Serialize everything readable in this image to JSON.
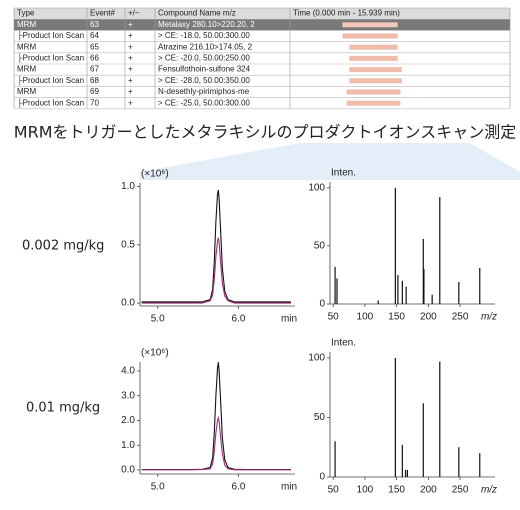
{
  "table": {
    "header": [
      "Type",
      "Event#",
      "+/−",
      "Compound Name m/z",
      "Time (0.000 min - 15.939 min)"
    ],
    "time_lim": [
      0,
      15.939
    ],
    "rows": [
      {
        "cells": [
          "MRM",
          "63",
          "+",
          "Metalaxy 280.10>220.20, 2"
        ],
        "time_window": [
          3.8,
          7.8
        ]
      },
      {
        "cells": [
          "├Product Ion Scan",
          "64",
          "+",
          "> CE: -18.0, 50.00:300.00"
        ],
        "time_window": [
          3.8,
          7.8
        ]
      },
      {
        "cells": [
          "MRM",
          "65",
          "+",
          "Atrazine 216.10>174.05, 2"
        ],
        "time_window": [
          4.3,
          7.8
        ]
      },
      {
        "cells": [
          "├Product Ion Scan",
          "66",
          "+",
          "> CE: -20.0, 50.00:250.00"
        ],
        "time_window": [
          4.3,
          7.8
        ]
      },
      {
        "cells": [
          "MRM",
          "67",
          "+",
          "Fensulfothoin-sulfone 324"
        ],
        "time_window": [
          4.3,
          8.1
        ]
      },
      {
        "cells": [
          "├Product Ion Scan",
          "68",
          "+",
          "> CE: -28.0, 50.00:350.00"
        ],
        "time_window": [
          4.3,
          8.1
        ]
      },
      {
        "cells": [
          "MRM",
          "69",
          "+",
          "N-desethly-pirimiphos-me"
        ],
        "time_window": [
          4.1,
          8.0
        ]
      },
      {
        "cells": [
          "├Product Ion Scan",
          "70",
          "+",
          "> CE: -25.0, 50.00:300.00"
        ],
        "time_window": [
          4.1,
          8.0
        ]
      }
    ]
  },
  "caption": "MRMをトリガーとしたメタラキシルのプロダクトイオンスキャン測定",
  "row_labels": [
    "0.002 mg/kg",
    "0.01 mg/kg"
  ],
  "chart_data": [
    {
      "type": "line",
      "y_unit_label": "(×10⁶)",
      "x_label": "min",
      "x": [
        4.8,
        5.0,
        5.2,
        5.4,
        5.55,
        5.65,
        5.68,
        5.7,
        5.72,
        5.74,
        5.75,
        5.76,
        5.78,
        5.8,
        5.83,
        5.87,
        5.95,
        6.1,
        6.3,
        6.5,
        6.65
      ],
      "series": [
        {
          "color": "#111111",
          "values": [
            0.01,
            0.01,
            0.01,
            0.01,
            0.01,
            0.03,
            0.12,
            0.35,
            0.7,
            0.93,
            0.97,
            0.9,
            0.6,
            0.3,
            0.1,
            0.03,
            0.01,
            0.01,
            0.01,
            0.01,
            0.01
          ]
        },
        {
          "color": "#a0307a",
          "values": [
            0.0,
            0.0,
            0.0,
            0.0,
            0.0,
            0.02,
            0.07,
            0.2,
            0.4,
            0.53,
            0.56,
            0.52,
            0.34,
            0.17,
            0.06,
            0.02,
            0.0,
            0.0,
            0.0,
            0.0,
            0.0
          ]
        }
      ],
      "xlim": [
        4.78,
        6.7
      ],
      "ylim": [
        -0.025,
        1.03
      ],
      "xticks": [
        {
          "value": 5,
          "label": "5.0"
        },
        {
          "value": 6,
          "label": "6.0"
        }
      ],
      "yticks": [
        {
          "value": 0,
          "label": "0.0"
        },
        {
          "value": 0.5,
          "label": "0.5"
        },
        {
          "value": 1,
          "label": "1.0"
        }
      ]
    },
    {
      "type": "stem",
      "y_unit_label": "Inten.",
      "x_label": "m/z",
      "color": "#111111",
      "x": [
        53,
        56,
        121,
        148,
        152,
        159,
        165,
        192,
        193,
        206,
        218,
        248,
        281
      ],
      "values": [
        32,
        22,
        3,
        100,
        25,
        20,
        15,
        56,
        30,
        8,
        92,
        19,
        31
      ],
      "xlim": [
        45,
        305
      ],
      "ylim": [
        0,
        105
      ],
      "xticks": [
        50,
        100,
        150,
        200,
        250
      ],
      "yticks": [
        0,
        50,
        100
      ]
    },
    {
      "type": "line",
      "y_unit_label": "(×10⁶)",
      "x_label": "min",
      "x": [
        4.8,
        5.0,
        5.2,
        5.4,
        5.55,
        5.65,
        5.68,
        5.7,
        5.72,
        5.74,
        5.75,
        5.76,
        5.78,
        5.8,
        5.83,
        5.87,
        5.95,
        6.1,
        6.3,
        6.5,
        6.65
      ],
      "series": [
        {
          "color": "#111111",
          "values": [
            0.02,
            0.02,
            0.02,
            0.02,
            0.03,
            0.1,
            0.5,
            1.5,
            3.0,
            4.1,
            4.35,
            4.0,
            2.7,
            1.3,
            0.4,
            0.1,
            0.03,
            0.02,
            0.02,
            0.02,
            0.02
          ]
        },
        {
          "color": "#a0307a",
          "values": [
            0.01,
            0.01,
            0.01,
            0.01,
            0.02,
            0.05,
            0.25,
            0.75,
            1.5,
            2.0,
            2.1,
            1.95,
            1.3,
            0.65,
            0.2,
            0.05,
            0.01,
            0.01,
            0.01,
            0.01,
            0.01
          ]
        }
      ],
      "xlim": [
        4.78,
        6.7
      ],
      "ylim": [
        -0.16,
        4.36
      ],
      "xticks": [
        {
          "value": 5,
          "label": "5.0"
        },
        {
          "value": 6,
          "label": "6.0"
        }
      ],
      "yticks": [
        {
          "value": 0,
          "label": "0.0"
        },
        {
          "value": 1,
          "label": "1.0"
        },
        {
          "value": 2,
          "label": "2.0"
        },
        {
          "value": 3,
          "label": "3.0"
        },
        {
          "value": 4,
          "label": "4.0"
        }
      ]
    },
    {
      "type": "stem",
      "y_unit_label": "Inten.",
      "x_label": "m/z",
      "color": "#111111",
      "x": [
        53,
        148,
        159,
        164,
        167,
        192,
        218,
        248,
        281
      ],
      "values": [
        30,
        100,
        27,
        6,
        6,
        62,
        97,
        25,
        20
      ],
      "xlim": [
        45,
        305
      ],
      "ylim": [
        0,
        105
      ],
      "xticks": [
        50,
        100,
        150,
        200,
        250
      ],
      "yticks": [
        0,
        50,
        100
      ]
    }
  ]
}
